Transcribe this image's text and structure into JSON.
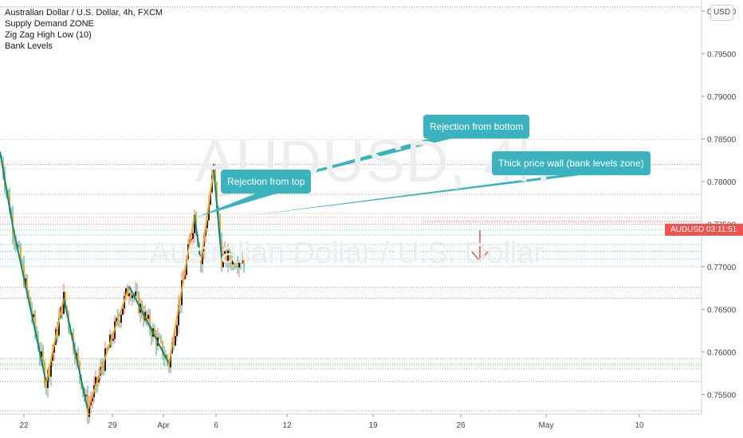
{
  "chart_data": {
    "type": "candlestick",
    "title": "Australian Dollar / U.S. Dollar, 4h, FXCM",
    "indicators": [
      "Supply Demand ZONE",
      "Zig Zag High Low (10)",
      "Bank Levels"
    ],
    "watermark_symbol": "AUDUSD, 4h",
    "watermark_name": "Australian Dollar / U.S. Dollar",
    "currency": "USD",
    "price_label": "AUDUSD",
    "countdown": "03:11:51",
    "current_price": 0.7753,
    "ylim": [
      0.7527,
      0.8013
    ],
    "y_ticks": [
      "0.80000",
      "0.79500",
      "0.79000",
      "0.78500",
      "0.78000",
      "0.77500",
      "0.77000",
      "0.76500",
      "0.76000",
      "0.75500"
    ],
    "y_tick_values": [
      0.8,
      0.795,
      0.79,
      0.785,
      0.78,
      0.775,
      0.77,
      0.765,
      0.76,
      0.755
    ],
    "x_ticks": [
      "22",
      "29",
      "Apr",
      "6",
      "12",
      "19",
      "26",
      "May",
      "10"
    ],
    "zigzag": [
      {
        "date": "2021-03-19 00:00",
        "price": 0.7835
      },
      {
        "date": "2021-03-22 08:00",
        "price": 0.7748
      },
      {
        "date": "2021-03-25 20:00",
        "price": 0.7564
      },
      {
        "date": "2021-03-29 16:00",
        "price": 0.7663
      },
      {
        "date": "2021-04-01 04:00",
        "price": 0.7532
      },
      {
        "date": "2021-04-07 12:00",
        "price": 0.7677
      },
      {
        "date": "2021-04-13 16:00",
        "price": 0.7586
      },
      {
        "date": "2021-04-16 08:00",
        "price": 0.776
      },
      {
        "date": "2021-04-19 00:00",
        "price": 0.7705
      },
      {
        "date": "2021-04-20 08:00",
        "price": 0.7815
      },
      {
        "date": "2021-04-21 04:00",
        "price": 0.771
      }
    ],
    "bank_levels": [
      0.8005,
      0.7849,
      0.782,
      0.7815,
      0.7785,
      0.7762,
      0.7758,
      0.7754,
      0.775,
      0.7743,
      0.7737,
      0.7726,
      0.7718,
      0.7709,
      0.77,
      0.7676,
      0.7663,
      0.7592,
      0.7586,
      0.7584,
      0.758,
      0.7565,
      0.7531
    ],
    "callouts": [
      {
        "text": "Rejection from top",
        "anchor_date": "2021-04-16 12:00",
        "anchor_price": 0.7758
      },
      {
        "text": "Rejection from bottom",
        "anchor_date": "2021-04-20 00:00",
        "anchor_price": 0.778
      },
      {
        "text": "Thick price wall (bank levels zone)",
        "anchor_date": "2021-04-22 16:00",
        "anchor_price": 0.7758
      }
    ],
    "forecast_arrow": "down",
    "colors": {
      "up": "#26a69a",
      "down": "#ef5350",
      "zigzag_down": "#0e8a7c",
      "zigzag_up": "#f5a623",
      "callout": "#3bb3be",
      "arrow": "#ef5350"
    }
  }
}
